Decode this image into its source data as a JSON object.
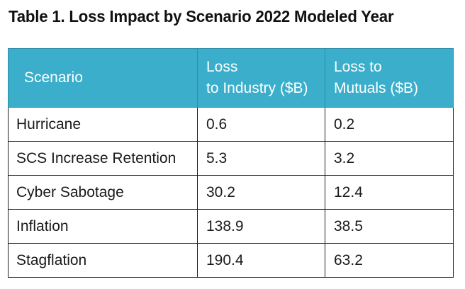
{
  "title": "Table 1. Loss Impact by Scenario 2022 Modeled Year",
  "table": {
    "headers": [
      "Scenario",
      "Loss to Industry ($B)",
      "Loss to Mutuals ($B)"
    ],
    "header_lines": {
      "industry": [
        "Loss",
        "to Industry ($B)"
      ],
      "mutuals": [
        "Loss to",
        "Mutuals ($B)"
      ]
    },
    "rows": [
      {
        "scenario": "Hurricane",
        "industry": "0.6",
        "mutuals": "0.2"
      },
      {
        "scenario": "SCS Increase Retention",
        "industry": "5.3",
        "mutuals": "3.2"
      },
      {
        "scenario": "Cyber Sabotage",
        "industry": "30.2",
        "mutuals": "12.4"
      },
      {
        "scenario": "Inflation",
        "industry": "138.9",
        "mutuals": "38.5"
      },
      {
        "scenario": "Stagflation",
        "industry": "190.4",
        "mutuals": "63.2"
      }
    ]
  },
  "colors": {
    "header_bg": "#3aaecb",
    "header_text": "#ffffff",
    "border": "#1f1f1f"
  }
}
